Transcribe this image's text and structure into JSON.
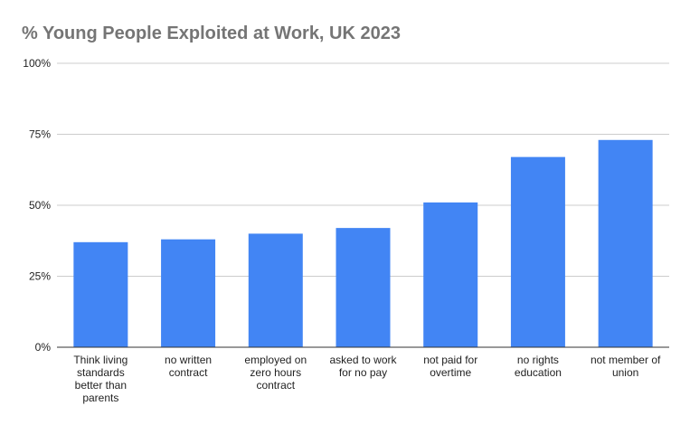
{
  "chart_data": {
    "type": "bar",
    "title": "% Young People Exploited at Work, UK 2023",
    "xlabel": "",
    "ylabel": "",
    "categories": [
      [
        "Think living",
        "standards",
        "better than",
        "parents"
      ],
      [
        "no written",
        "contract"
      ],
      [
        "employed on",
        "zero hours",
        "contract"
      ],
      [
        "asked to work",
        "for no pay"
      ],
      [
        "not paid for",
        "overtime"
      ],
      [
        "no rights",
        "education"
      ],
      [
        "not member of",
        "union"
      ]
    ],
    "values": [
      37,
      38,
      40,
      42,
      51,
      67,
      73
    ],
    "ylim": [
      0,
      100
    ],
    "yticks": [
      0,
      25,
      50,
      75,
      100
    ],
    "ytick_labels": [
      "0%",
      "25%",
      "50%",
      "75%",
      "100%"
    ],
    "grid": true,
    "legend": "none",
    "colors": {
      "bar": "#4285f4",
      "title": "#757575",
      "grid": "#cccccc",
      "axis": "#333333"
    }
  }
}
